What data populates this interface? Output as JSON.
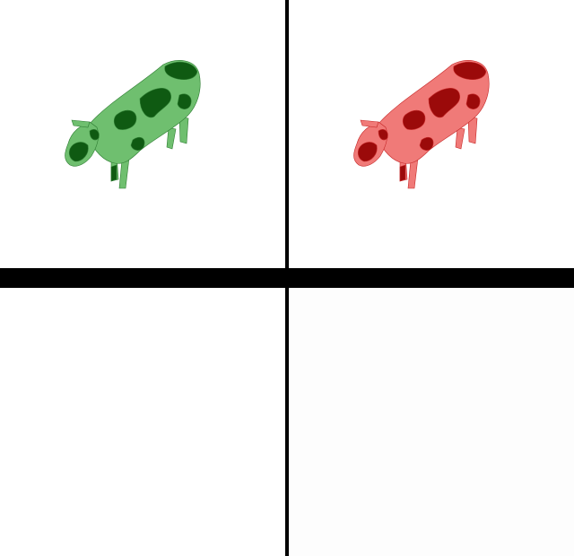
{
  "panels": [
    {
      "id": "top-left",
      "content": "cow",
      "base_color": "#6fbf6f",
      "spot_color": "#0f5a12",
      "outline_color": "#2e7d32"
    },
    {
      "id": "top-right",
      "content": "cow",
      "base_color": "#f07a78",
      "spot_color": "#9b0a0a",
      "outline_color": "#c62828"
    },
    {
      "id": "bottom-left",
      "content": "empty"
    },
    {
      "id": "bottom-right",
      "content": "empty"
    }
  ],
  "divider_color": "#000000"
}
